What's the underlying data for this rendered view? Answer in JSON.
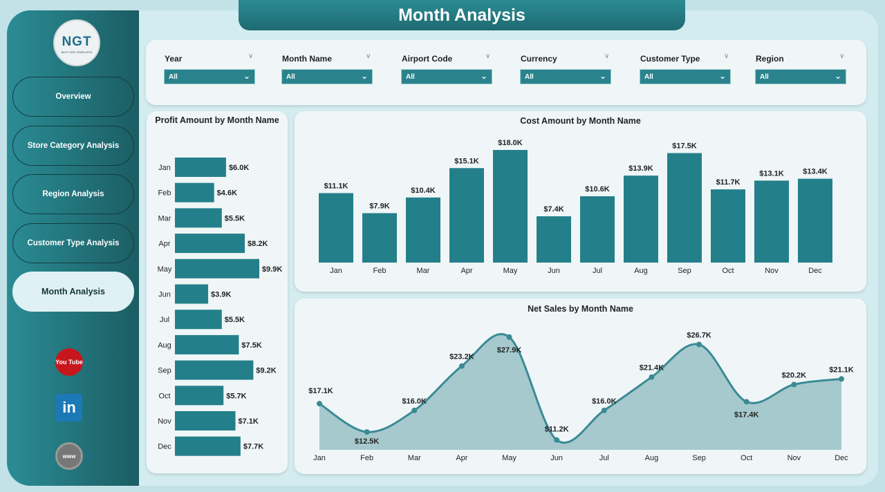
{
  "header": {
    "title": "Month Analysis"
  },
  "logo": {
    "text": "NGT",
    "subtitle": "NEXT GEN TEMPLATES"
  },
  "sidebar": {
    "items": [
      {
        "label": "Overview"
      },
      {
        "label": "Store Category Analysis"
      },
      {
        "label": "Region Analysis"
      },
      {
        "label": "Customer Type Analysis"
      },
      {
        "label": "Month Analysis",
        "active": true
      }
    ],
    "social": [
      {
        "icon": "youtube-icon",
        "label": "You Tube"
      },
      {
        "icon": "linkedin-icon",
        "label": "in"
      },
      {
        "icon": "globe-icon",
        "label": "www"
      }
    ]
  },
  "filters": [
    {
      "label": "Year",
      "value": "All"
    },
    {
      "label": "Month Name",
      "value": "All"
    },
    {
      "label": "Airport Code",
      "value": "All"
    },
    {
      "label": "Currency",
      "value": "All"
    },
    {
      "label": "Customer Type",
      "value": "All"
    },
    {
      "label": "Region",
      "value": "All"
    }
  ],
  "colors": {
    "accent": "#23808a",
    "area": "#a6c9ce",
    "line": "#3a8a94"
  },
  "chart_data": [
    {
      "type": "bar",
      "orientation": "horizontal",
      "title": "Profit Amount by Month Name",
      "categories": [
        "Jan",
        "Feb",
        "Mar",
        "Apr",
        "May",
        "Jun",
        "Jul",
        "Aug",
        "Sep",
        "Oct",
        "Nov",
        "Dec"
      ],
      "values": [
        6.0,
        4.6,
        5.5,
        8.2,
        9.9,
        3.9,
        5.5,
        7.5,
        9.2,
        5.7,
        7.1,
        7.7
      ],
      "labels": [
        "$6.0K",
        "$4.6K",
        "$5.5K",
        "$8.2K",
        "$9.9K",
        "$3.9K",
        "$5.5K",
        "$7.5K",
        "$9.2K",
        "$5.7K",
        "$7.1K",
        "$7.7K"
      ],
      "unit": "K USD"
    },
    {
      "type": "bar",
      "title": "Cost Amount by Month Name",
      "categories": [
        "Jan",
        "Feb",
        "Mar",
        "Apr",
        "May",
        "Jun",
        "Jul",
        "Aug",
        "Sep",
        "Oct",
        "Nov",
        "Dec"
      ],
      "values": [
        11.1,
        7.9,
        10.4,
        15.1,
        18.0,
        7.4,
        10.6,
        13.9,
        17.5,
        11.7,
        13.1,
        13.4
      ],
      "labels": [
        "$11.1K",
        "$7.9K",
        "$10.4K",
        "$15.1K",
        "$18.0K",
        "$7.4K",
        "$10.6K",
        "$13.9K",
        "$17.5K",
        "$11.7K",
        "$13.1K",
        "$13.4K"
      ],
      "unit": "K USD"
    },
    {
      "type": "area",
      "title": "Net Sales by Month Name",
      "categories": [
        "Jan",
        "Feb",
        "Mar",
        "Apr",
        "May",
        "Jun",
        "Jul",
        "Aug",
        "Sep",
        "Oct",
        "Nov",
        "Dec"
      ],
      "values": [
        17.1,
        12.5,
        16.0,
        23.2,
        27.9,
        11.2,
        16.0,
        21.4,
        26.7,
        17.4,
        20.2,
        21.1
      ],
      "labels": [
        "$17.1K",
        "$12.5K",
        "$16.0K",
        "$23.2K",
        "$27.9K",
        "$11.2K",
        "$16.0K",
        "$21.4K",
        "$26.7K",
        "$17.4K",
        "$20.2K",
        "$21.1K"
      ],
      "unit": "K USD"
    }
  ]
}
